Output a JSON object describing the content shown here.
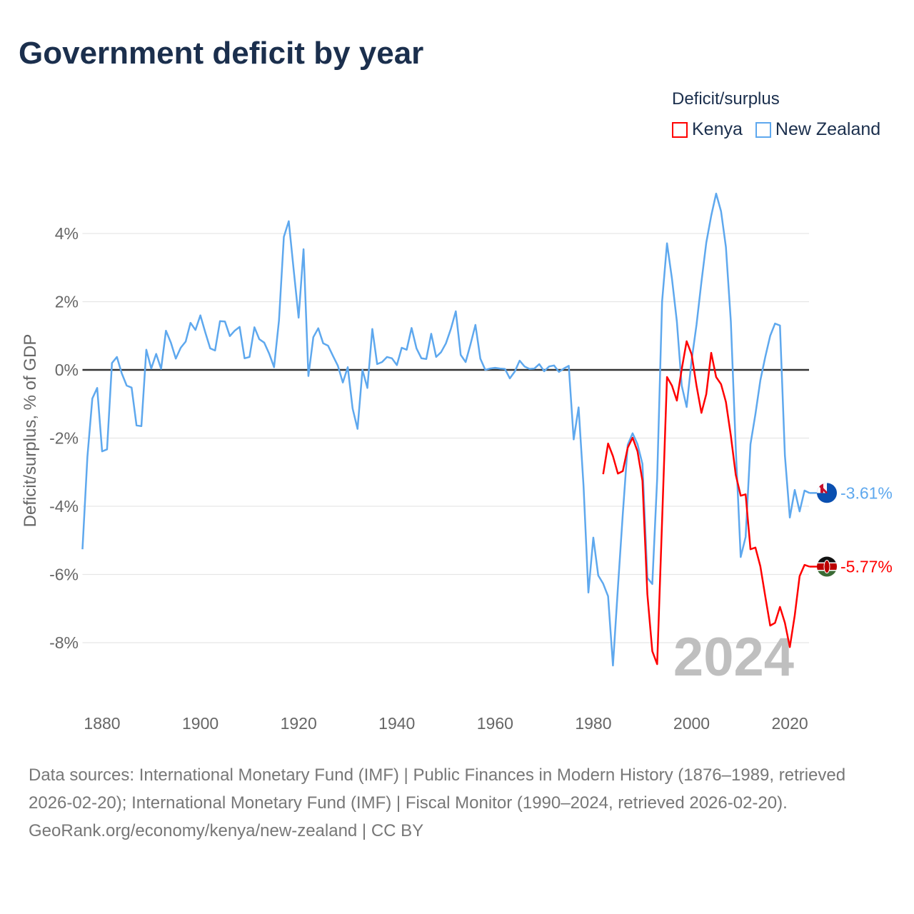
{
  "title": "Government deficit by year",
  "legend": {
    "title": "Deficit/surplus",
    "items": [
      {
        "label": "Kenya",
        "color": "#ff0000"
      },
      {
        "label": "New Zealand",
        "color": "#5ea8ee"
      }
    ]
  },
  "footer": {
    "sources": "Data sources: International Monetary Fund (IMF) | Public Finances in Modern History (1876–1989, retrieved 2026-02-20); International Monetary Fund (IMF) | Fiscal Monitor (1990–2024, retrieved 2026-02-20).",
    "credit": "GeoRank.org/economy/kenya/new-zealand | CC BY"
  },
  "chart_data": {
    "type": "line",
    "title": "Government deficit by year",
    "ylabel": "Deficit/surplus, % of GDP",
    "xlabel": "",
    "xlim": [
      1876,
      2024
    ],
    "ylim": [
      -9.8,
      5.4
    ],
    "yticks": [
      -8,
      -6,
      -4,
      -2,
      0,
      2,
      4
    ],
    "ytick_labels": [
      "-8%",
      "-6%",
      "-4%",
      "-2%",
      "0%",
      "2%",
      "4%"
    ],
    "xticks": [
      1880,
      1900,
      1920,
      1940,
      1960,
      1980,
      2000,
      2020
    ],
    "xtick_labels": [
      "1880",
      "1900",
      "1920",
      "1940",
      "1960",
      "1980",
      "2000",
      "2020"
    ],
    "grid": true,
    "legend_position": "top-right",
    "watermark_year": "2024",
    "series": [
      {
        "name": "New Zealand",
        "color": "#5ea8ee",
        "start_year": 1876,
        "end_label": "-3.61%",
        "values": [
          -5.26,
          -2.55,
          -0.84,
          -0.53,
          -2.39,
          -2.33,
          0.2,
          0.38,
          -0.1,
          -0.46,
          -0.52,
          -1.63,
          -1.65,
          0.59,
          0.04,
          0.47,
          0.03,
          1.15,
          0.8,
          0.33,
          0.65,
          0.83,
          1.38,
          1.17,
          1.6,
          1.1,
          0.63,
          0.57,
          1.43,
          1.42,
          0.99,
          1.15,
          1.26,
          0.34,
          0.38,
          1.25,
          0.9,
          0.8,
          0.48,
          0.08,
          1.45,
          3.9,
          4.36,
          2.93,
          1.53,
          3.54,
          -0.18,
          0.96,
          1.22,
          0.78,
          0.71,
          0.41,
          0.12,
          -0.37,
          0.08,
          -1.13,
          -1.73,
          0,
          -0.53,
          1.2,
          0.17,
          0.23,
          0.38,
          0.34,
          0.14,
          0.65,
          0.59,
          1.23,
          0.63,
          0.34,
          0.32,
          1.06,
          0.38,
          0.52,
          0.78,
          1.2,
          1.72,
          0.44,
          0.23,
          0.75,
          1.32,
          0.33,
          0,
          0.04,
          0.06,
          0.04,
          0.03,
          -0.25,
          -0.05,
          0.27,
          0.1,
          0.03,
          0.04,
          0.17,
          -0.04,
          0.1,
          0.13,
          -0.06,
          0.04,
          0.12,
          -2.04,
          -1.1,
          -3.4,
          -6.53,
          -4.92,
          -6.03,
          -6.27,
          -6.64,
          -8.67,
          -6.4,
          -4.22,
          -2.2,
          -1.86,
          -2.18,
          -2.76,
          -6.1,
          -6.28,
          -3.2,
          2.0,
          3.71,
          2.68,
          1.42,
          -0.46,
          -1.09,
          0.27,
          1.32,
          2.58,
          3.73,
          4.52,
          5.17,
          4.65,
          3.6,
          1.42,
          -2.3,
          -5.49,
          -4.9,
          -2.18,
          -1.3,
          -0.31,
          0.38,
          1.0,
          1.36,
          1.3,
          -2.51,
          -4.33,
          -3.52,
          -4.15,
          -3.54,
          -3.61
        ]
      },
      {
        "name": "Kenya",
        "color": "#ff0000",
        "start_year": 1982,
        "end_label": "-5.77%",
        "values": [
          -3.06,
          -2.16,
          -2.53,
          -3.04,
          -2.97,
          -2.28,
          -1.99,
          -2.39,
          -3.25,
          -6.58,
          -8.25,
          -8.63,
          -4.44,
          -0.21,
          -0.46,
          -0.9,
          0.02,
          0.84,
          0.46,
          -0.46,
          -1.26,
          -0.71,
          0.5,
          -0.21,
          -0.42,
          -0.94,
          -1.93,
          -3.08,
          -3.69,
          -3.65,
          -5.26,
          -5.21,
          -5.76,
          -6.64,
          -7.5,
          -7.42,
          -6.95,
          -7.42,
          -8.13,
          -7.2,
          -6.05,
          -5.72,
          -5.77
        ]
      }
    ]
  }
}
